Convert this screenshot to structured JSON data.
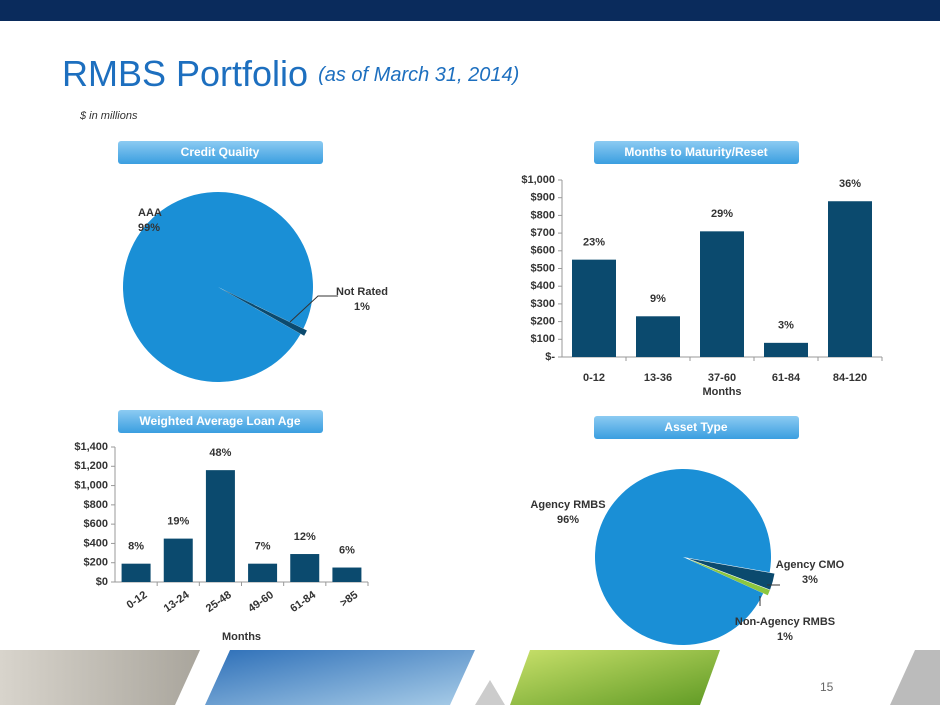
{
  "header": {
    "title": "RMBS Portfolio",
    "subtitle": "(as of March 31, 2014)",
    "note": "$ in millions",
    "page_number": "15"
  },
  "chart_data": [
    {
      "type": "pie",
      "title": "Credit Quality",
      "categories": [
        "AAA",
        "Not Rated"
      ],
      "values": [
        99,
        1
      ],
      "value_labels": [
        "99%",
        "1%"
      ],
      "colors": [
        "#1a8fd6",
        "#0b4a6e"
      ]
    },
    {
      "type": "bar",
      "title": "Months to Maturity/Reset",
      "xlabel": "Months",
      "categories": [
        "0-12",
        "13-36",
        "37-60",
        "61-84",
        "84-120"
      ],
      "values": [
        550,
        230,
        710,
        80,
        880
      ],
      "percent_labels": [
        "23%",
        "9%",
        "29%",
        "3%",
        "36%"
      ],
      "color": "#0b4a6e",
      "ylim": [
        0,
        1000
      ],
      "yticks": [
        {
          "value": 0,
          "label": "$-"
        },
        {
          "value": 100,
          "label": "$100"
        },
        {
          "value": 200,
          "label": "$200"
        },
        {
          "value": 300,
          "label": "$300"
        },
        {
          "value": 400,
          "label": "$400"
        },
        {
          "value": 500,
          "label": "$500"
        },
        {
          "value": 600,
          "label": "$600"
        },
        {
          "value": 700,
          "label": "$700"
        },
        {
          "value": 800,
          "label": "$800"
        },
        {
          "value": 900,
          "label": "$900"
        },
        {
          "value": 1000,
          "label": "$1,000"
        }
      ]
    },
    {
      "type": "bar",
      "title": "Weighted Average Loan Age",
      "xlabel": "Months",
      "categories": [
        "0-12",
        "13-24",
        "25-48",
        "49-60",
        "61-84",
        ">85"
      ],
      "values": [
        190,
        450,
        1160,
        190,
        290,
        150
      ],
      "percent_labels": [
        "8%",
        "19%",
        "48%",
        "7%",
        "12%",
        "6%"
      ],
      "color": "#0b4a6e",
      "ylim": [
        0,
        1400
      ],
      "yticks": [
        {
          "value": 0,
          "label": "$0"
        },
        {
          "value": 200,
          "label": "$200"
        },
        {
          "value": 400,
          "label": "$400"
        },
        {
          "value": 600,
          "label": "$600"
        },
        {
          "value": 800,
          "label": "$800"
        },
        {
          "value": 1000,
          "label": "$1,000"
        },
        {
          "value": 1200,
          "label": "$1,200"
        },
        {
          "value": 1400,
          "label": "$1,400"
        }
      ]
    },
    {
      "type": "pie",
      "title": "Asset Type",
      "categories": [
        "Agency RMBS",
        "Agency CMO",
        "Non-Agency RMBS"
      ],
      "values": [
        96,
        3,
        1
      ],
      "value_labels": [
        "96%",
        "3%",
        "1%"
      ],
      "colors": [
        "#1a8fd6",
        "#0b4a6e",
        "#8cc63f"
      ]
    }
  ]
}
